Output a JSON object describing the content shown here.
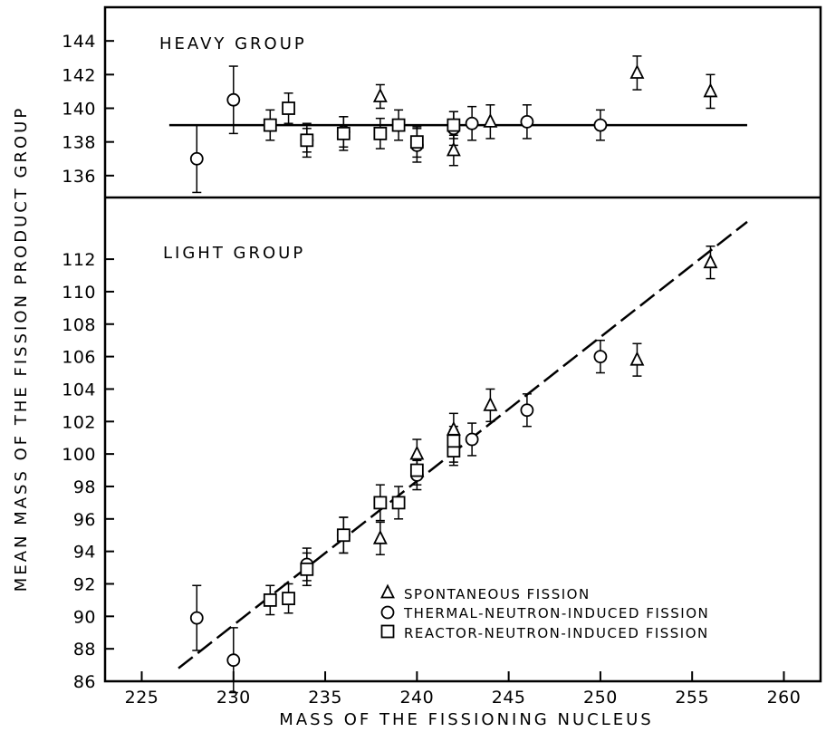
{
  "chart_data": {
    "type": "scatter",
    "xlabel": "MASS OF THE FISSIONING NUCLEUS",
    "ylabel": "MEAN MASS OF THE FISSION PRODUCT GROUP",
    "xlim": [
      223,
      262
    ],
    "x_ticks": [
      225,
      230,
      235,
      240,
      245,
      250,
      255,
      260
    ],
    "grid": false,
    "legend_position": "bottom-right",
    "legend": [
      {
        "marker": "triangle",
        "label": "SPONTANEOUS FISSION"
      },
      {
        "marker": "circle",
        "label": "THERMAL-NEUTRON-INDUCED FISSION"
      },
      {
        "marker": "square",
        "label": "REACTOR-NEUTRON-INDUCED FISSION"
      }
    ],
    "panels": [
      {
        "name": "heavy",
        "label": "HEAVY GROUP",
        "ylim": [
          134.7,
          146
        ],
        "y_ticks": [
          136,
          138,
          140,
          142,
          144
        ],
        "y_tick_labels": [
          "136",
          "138",
          "140",
          "142",
          "144"
        ],
        "fit_line": {
          "style": "solid",
          "x": [
            226.5,
            258
          ],
          "y": [
            139,
            139
          ]
        },
        "series": [
          {
            "marker": "triangle",
            "points": [
              {
                "x": 238,
                "y": 140.7,
                "err": 0.7
              },
              {
                "x": 242,
                "y": 137.5,
                "err": 0.9
              },
              {
                "x": 244,
                "y": 139.2,
                "err": 1.0
              },
              {
                "x": 252,
                "y": 142.1,
                "err": 1.0
              },
              {
                "x": 256,
                "y": 141.0,
                "err": 1.0
              }
            ]
          },
          {
            "marker": "circle",
            "points": [
              {
                "x": 228,
                "y": 137.0,
                "err": 2.0
              },
              {
                "x": 230,
                "y": 140.5,
                "err": 2.0
              },
              {
                "x": 234,
                "y": 138.1,
                "err": 1.0
              },
              {
                "x": 236,
                "y": 138.6,
                "err": 0.9
              },
              {
                "x": 240,
                "y": 137.8,
                "err": 1.0
              },
              {
                "x": 242,
                "y": 138.8,
                "err": 1.0
              },
              {
                "x": 243,
                "y": 139.1,
                "err": 1.0
              },
              {
                "x": 246,
                "y": 139.2,
                "err": 1.0
              },
              {
                "x": 250,
                "y": 139.0,
                "err": 0.9
              }
            ]
          },
          {
            "marker": "square",
            "points": [
              {
                "x": 232,
                "y": 139.0,
                "err": 0.9
              },
              {
                "x": 233,
                "y": 140.0,
                "err": 0.9
              },
              {
                "x": 234,
                "y": 138.1,
                "err": 0.7
              },
              {
                "x": 236,
                "y": 138.5,
                "err": 1.0
              },
              {
                "x": 238,
                "y": 138.5,
                "err": 0.9
              },
              {
                "x": 239,
                "y": 139.0,
                "err": 0.9
              },
              {
                "x": 240,
                "y": 138.0,
                "err": 0.9
              },
              {
                "x": 242,
                "y": 139.0,
                "err": 0.8
              }
            ]
          }
        ]
      },
      {
        "name": "light",
        "label": "LIGHT GROUP",
        "ylim": [
          86,
          115.8
        ],
        "y_ticks": [
          86,
          88,
          90,
          92,
          94,
          96,
          98,
          100,
          102,
          104,
          106,
          108,
          110,
          112
        ],
        "y_tick_labels": [
          "86",
          "88",
          "90",
          "92",
          "94",
          "96",
          "98",
          "100",
          "102",
          "104",
          "106",
          "108",
          "110",
          "112"
        ],
        "fit_line": {
          "style": "dashed",
          "x": [
            227,
            258
          ],
          "y": [
            86.8,
            114.3
          ]
        },
        "series": [
          {
            "marker": "triangle",
            "points": [
              {
                "x": 238,
                "y": 94.8,
                "err": 1.0
              },
              {
                "x": 240,
                "y": 100.0,
                "err": 0.9
              },
              {
                "x": 242,
                "y": 101.5,
                "err": 1.0
              },
              {
                "x": 244,
                "y": 103.0,
                "err": 1.0
              },
              {
                "x": 252,
                "y": 105.8,
                "err": 1.0
              },
              {
                "x": 256,
                "y": 111.8,
                "err": 1.0
              }
            ]
          },
          {
            "marker": "circle",
            "points": [
              {
                "x": 228,
                "y": 89.9,
                "err": 2.0
              },
              {
                "x": 230,
                "y": 87.3,
                "err": 2.0
              },
              {
                "x": 234,
                "y": 93.2,
                "err": 1.0
              },
              {
                "x": 236,
                "y": 95.0,
                "err": 1.1
              },
              {
                "x": 240,
                "y": 98.7,
                "err": 0.9
              },
              {
                "x": 242,
                "y": 100.5,
                "err": 1.0
              },
              {
                "x": 243,
                "y": 100.9,
                "err": 1.0
              },
              {
                "x": 246,
                "y": 102.7,
                "err": 1.0
              },
              {
                "x": 250,
                "y": 106.0,
                "err": 1.0
              }
            ]
          },
          {
            "marker": "square",
            "points": [
              {
                "x": 232,
                "y": 91.0,
                "err": 0.9
              },
              {
                "x": 233,
                "y": 91.1,
                "err": 0.9
              },
              {
                "x": 234,
                "y": 92.9,
                "err": 1.0
              },
              {
                "x": 236,
                "y": 95.0,
                "err": 1.1
              },
              {
                "x": 238,
                "y": 97.0,
                "err": 1.1
              },
              {
                "x": 239,
                "y": 97.0,
                "err": 1.0
              },
              {
                "x": 240,
                "y": 99.0,
                "err": 0.9
              },
              {
                "x": 242,
                "y": 100.2,
                "err": 0.9
              },
              {
                "x": 242,
                "y": 100.8,
                "err": 0.9
              }
            ]
          }
        ]
      }
    ]
  }
}
